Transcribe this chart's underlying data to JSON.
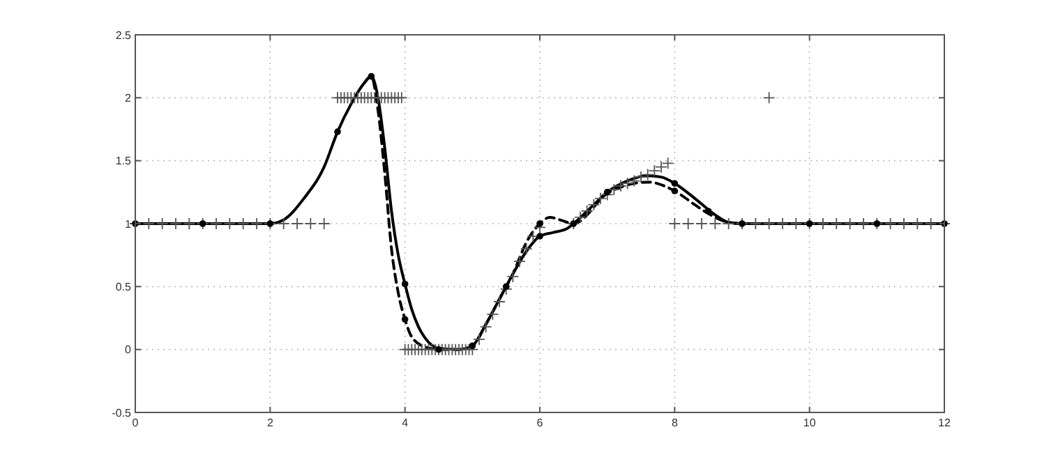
{
  "chart_data": {
    "type": "line",
    "xlim": [
      0,
      12
    ],
    "ylim": [
      -0.5,
      2.5
    ],
    "xticks": [
      0,
      2,
      4,
      6,
      8,
      10,
      12
    ],
    "yticks": [
      {
        "value": -0.5,
        "label": "-0.5"
      },
      0,
      0.5,
      1,
      1.5,
      2,
      2.5
    ],
    "grid": true,
    "series": [
      {
        "color": "#000000",
        "line_style": "solid",
        "marker": "none",
        "x": [
          0,
          1,
          2,
          2.2,
          2.5,
          2.8,
          3,
          3.2,
          3.4,
          3.5,
          3.6,
          3.7,
          3.8,
          3.9,
          4,
          4.1,
          4.2,
          4.3,
          4.5,
          4.8,
          5,
          5.2,
          5.4,
          5.6,
          5.8,
          6,
          6.2,
          6.4,
          6.5,
          6.8,
          7,
          7.3,
          7.6,
          7.8,
          8,
          8.3,
          8.6,
          8.8,
          9,
          10,
          11,
          12
        ],
        "values": [
          1,
          1,
          1,
          1.03,
          1.2,
          1.45,
          1.73,
          1.95,
          2.12,
          2.17,
          2.0,
          1.6,
          1.1,
          0.75,
          0.52,
          0.32,
          0.18,
          0.09,
          0.01,
          0,
          0.03,
          0.2,
          0.4,
          0.6,
          0.78,
          0.9,
          0.93,
          0.96,
          1.0,
          1.15,
          1.25,
          1.34,
          1.38,
          1.37,
          1.32,
          1.2,
          1.07,
          1.01,
          1,
          1,
          1,
          1
        ]
      },
      {
        "color": "#000000",
        "line_style": "dashed",
        "marker": "none",
        "x": [
          3.4,
          3.5,
          3.6,
          3.7,
          3.8,
          3.9,
          4,
          4.1,
          4.3,
          4.5,
          4.8,
          5,
          5.2,
          5.4,
          5.6,
          5.8,
          6,
          6.15,
          6.3,
          6.5,
          7,
          7.4,
          7.6,
          8,
          8.3,
          8.5,
          8.8,
          9
        ],
        "values": [
          2.12,
          2.17,
          1.9,
          1.4,
          0.8,
          0.45,
          0.24,
          0.1,
          0.02,
          0,
          0,
          0.03,
          0.2,
          0.4,
          0.6,
          0.85,
          1.0,
          1.05,
          1.03,
          1.0,
          1.24,
          1.32,
          1.33,
          1.26,
          1.15,
          1.08,
          1.01,
          1
        ]
      },
      {
        "type": "scatter",
        "color": "#000000",
        "marker": "circle",
        "x": [
          0,
          1,
          2,
          3,
          3.5,
          4,
          4,
          4.5,
          5,
          5.5,
          6,
          6,
          6.5,
          7,
          8,
          8,
          8.5,
          9,
          10,
          11,
          12
        ],
        "values": [
          1,
          1,
          1,
          1.73,
          2.17,
          0.52,
          0.24,
          0,
          0.03,
          0.5,
          0.9,
          1.0,
          1.0,
          1.25,
          1.32,
          1.26,
          1.1,
          1,
          1,
          1,
          1
        ]
      },
      {
        "type": "scatter",
        "color": "#555555",
        "marker": "cross",
        "x": [
          0,
          0.2,
          0.4,
          0.6,
          0.8,
          1,
          1.2,
          1.4,
          1.6,
          1.8,
          2,
          2.2,
          2.4,
          2.6,
          2.8,
          3,
          3.05,
          3.1,
          3.15,
          3.2,
          3.25,
          3.3,
          3.35,
          3.4,
          3.45,
          3.5,
          3.55,
          3.6,
          3.65,
          3.7,
          3.75,
          3.8,
          3.85,
          3.9,
          3.95,
          4,
          4.05,
          4.1,
          4.15,
          4.2,
          4.25,
          4.3,
          4.35,
          4.4,
          4.45,
          4.5,
          4.55,
          4.6,
          4.65,
          4.7,
          4.75,
          4.8,
          4.85,
          4.9,
          4.95,
          5,
          5.1,
          5.2,
          5.3,
          5.4,
          5.5,
          5.6,
          5.7,
          5.8,
          5.9,
          6,
          6.5,
          6.6,
          6.7,
          6.8,
          6.9,
          7,
          7.1,
          7.2,
          7.3,
          7.4,
          7.5,
          7.6,
          7.7,
          7.8,
          7.9,
          8,
          8.2,
          8.4,
          8.6,
          8.8,
          9,
          9.2,
          9.4,
          9.6,
          9.8,
          10,
          10.2,
          10.4,
          10.6,
          10.8,
          11,
          11.2,
          11.4,
          11.6,
          11.8,
          12,
          9.4
        ],
        "values": [
          1,
          1,
          1,
          1,
          1,
          1,
          1,
          1,
          1,
          1,
          1,
          1,
          1,
          1,
          1,
          2,
          2,
          2,
          2,
          2,
          2,
          2,
          2,
          2,
          2,
          2,
          2,
          2,
          2,
          2,
          2,
          2,
          2,
          2,
          2,
          0,
          0,
          0,
          0,
          0,
          0,
          0,
          0,
          0,
          0,
          0,
          0,
          0,
          0,
          0,
          0,
          0,
          0,
          0,
          0,
          0,
          0.08,
          0.18,
          0.28,
          0.38,
          0.48,
          0.58,
          0.7,
          0.8,
          0.9,
          0.97,
          1.0,
          1.05,
          1.1,
          1.15,
          1.2,
          1.23,
          1.27,
          1.3,
          1.32,
          1.34,
          1.37,
          1.39,
          1.42,
          1.45,
          1.48,
          1,
          1,
          1,
          1,
          1,
          1,
          1,
          1,
          1,
          1,
          1,
          1,
          1,
          1,
          1,
          1,
          1,
          1,
          1,
          1,
          1,
          2
        ]
      }
    ]
  }
}
